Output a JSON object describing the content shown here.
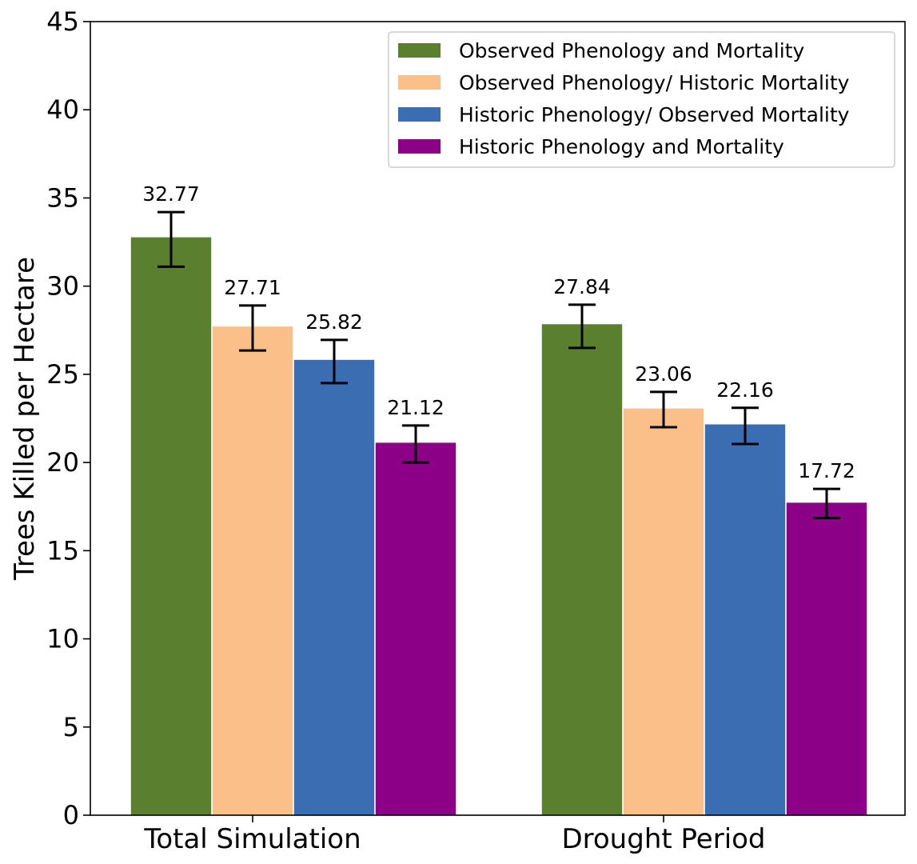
{
  "chart_data": {
    "type": "bar",
    "title": "",
    "xlabel": "",
    "ylabel": "Trees Killed per Hectare",
    "ylim": [
      0,
      45
    ],
    "yticks": [
      0,
      5,
      10,
      15,
      20,
      25,
      30,
      35,
      40,
      45
    ],
    "grid": false,
    "legend_position": "top-right",
    "categories": [
      "Total Simulation",
      "Drought Period"
    ],
    "series": [
      {
        "name": "Observed Phenology and Mortality",
        "color": "#5a7f2e",
        "values": [
          32.77,
          27.84
        ],
        "labels": [
          "32.77",
          "27.84"
        ],
        "err_low": [
          31.1,
          26.5
        ],
        "err_high": [
          34.2,
          28.95
        ]
      },
      {
        "name": "Observed Phenology/ Historic Mortality",
        "color": "#fbc08a",
        "values": [
          27.71,
          23.06
        ],
        "labels": [
          "27.71",
          "23.06"
        ],
        "err_low": [
          26.35,
          22.0
        ],
        "err_high": [
          28.9,
          24.0
        ]
      },
      {
        "name": "Historic Phenology/ Observed Mortality",
        "color": "#3a6db1",
        "values": [
          25.82,
          22.16
        ],
        "labels": [
          "25.82",
          "22.16"
        ],
        "err_low": [
          24.5,
          21.05
        ],
        "err_high": [
          26.95,
          23.1
        ]
      },
      {
        "name": "Historic Phenology and Mortality",
        "color": "#8b0087",
        "values": [
          21.12,
          17.72
        ],
        "labels": [
          "21.12",
          "17.72"
        ],
        "err_low": [
          20.0,
          16.85
        ],
        "err_high": [
          22.1,
          18.5
        ]
      }
    ]
  }
}
